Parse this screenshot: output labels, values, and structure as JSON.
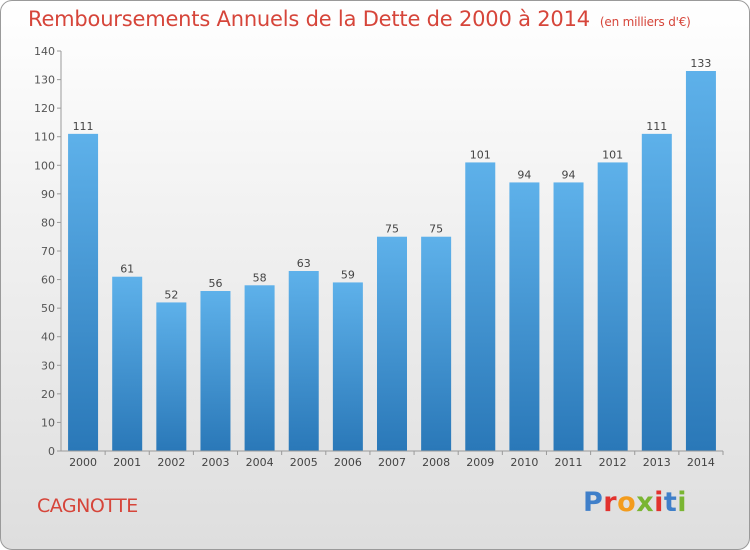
{
  "header": {
    "title": "Remboursements Annuels de la Dette de 2000 à 2014",
    "unit": "(en milliers d'€)"
  },
  "footer": {
    "commune": "CAGNOTTE",
    "logo": "Proxiti"
  },
  "colors": {
    "title": "#d6453a",
    "bar_top": "#5eb1ea",
    "bar_bottom": "#2a78b8",
    "logo_letters": [
      "#3f7fc9",
      "#e2322e",
      "#f39c1d",
      "#7ab532",
      "#e2322e",
      "#3f7fc9",
      "#7ab532"
    ]
  },
  "chart_data": {
    "type": "bar",
    "categories": [
      "2000",
      "2001",
      "2002",
      "2003",
      "2004",
      "2005",
      "2006",
      "2007",
      "2008",
      "2009",
      "2010",
      "2011",
      "2012",
      "2013",
      "2014"
    ],
    "values": [
      111,
      61,
      52,
      56,
      58,
      63,
      59,
      75,
      75,
      101,
      94,
      94,
      101,
      111,
      133
    ],
    "ylim": [
      0,
      140
    ],
    "yticks": [
      0,
      10,
      20,
      30,
      40,
      50,
      60,
      70,
      80,
      90,
      100,
      110,
      120,
      130,
      140
    ],
    "grid": false,
    "data_labels": true
  }
}
